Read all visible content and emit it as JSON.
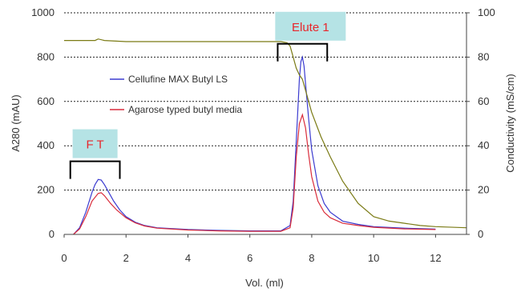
{
  "chart_data": {
    "type": "line",
    "xlabel": "Vol. (ml)",
    "ylabel": "A280 (mAU)",
    "y2label": "Conductivity (mS/cm)",
    "xlim": [
      0,
      13
    ],
    "ylim": [
      0,
      1000
    ],
    "y2lim": [
      0,
      100
    ],
    "x_ticks": [
      0,
      2,
      4,
      6,
      8,
      10,
      12
    ],
    "y_ticks": [
      0,
      200,
      400,
      600,
      800,
      1000
    ],
    "y2_ticks": [
      0,
      20,
      40,
      60,
      80,
      100
    ],
    "grid": "dashed horizontal",
    "legend_position": "upper-left inside plot",
    "series": [
      {
        "name": "Cellufine MAX Butyl LS",
        "axis": "left",
        "color": "#3b3bd0",
        "x": [
          0.3,
          0.5,
          0.7,
          0.9,
          1.0,
          1.1,
          1.2,
          1.3,
          1.4,
          1.6,
          1.8,
          2.0,
          2.3,
          2.6,
          3.0,
          4.0,
          5.0,
          6.0,
          7.0,
          7.3,
          7.4,
          7.5,
          7.6,
          7.65,
          7.7,
          7.75,
          7.8,
          7.9,
          8.0,
          8.2,
          8.4,
          8.6,
          9.0,
          9.5,
          10.0,
          11.0,
          12.0
        ],
        "y": [
          0,
          30,
          100,
          190,
          225,
          248,
          245,
          225,
          200,
          150,
          110,
          80,
          55,
          40,
          30,
          22,
          18,
          16,
          16,
          40,
          150,
          420,
          700,
          780,
          800,
          760,
          680,
          520,
          380,
          220,
          140,
          100,
          60,
          45,
          35,
          28,
          24
        ]
      },
      {
        "name": "Agarose typed butyl media",
        "axis": "left",
        "color": "#d92c3b",
        "x": [
          0.3,
          0.5,
          0.7,
          0.9,
          1.1,
          1.2,
          1.3,
          1.5,
          1.7,
          2.0,
          2.3,
          2.6,
          3.0,
          4.0,
          5.0,
          6.0,
          7.0,
          7.3,
          7.4,
          7.5,
          7.6,
          7.7,
          7.8,
          7.9,
          8.0,
          8.2,
          8.4,
          8.6,
          9.0,
          9.5,
          10.0,
          11.0,
          12.0
        ],
        "y": [
          0,
          25,
          80,
          150,
          185,
          188,
          175,
          140,
          110,
          75,
          52,
          38,
          28,
          20,
          16,
          14,
          14,
          30,
          120,
          350,
          500,
          540,
          480,
          360,
          260,
          150,
          100,
          75,
          50,
          40,
          32,
          25,
          22
        ]
      },
      {
        "name": "",
        "axis": "right",
        "color": "#7a7a14",
        "x": [
          0,
          1.0,
          1.1,
          1.3,
          2,
          4,
          6,
          7.0,
          7.2,
          7.3,
          7.4,
          7.5,
          7.6,
          7.7,
          7.8,
          8.0,
          8.3,
          8.6,
          9.0,
          9.5,
          10.0,
          10.5,
          11.0,
          11.5,
          12.0,
          13.0
        ],
        "y": [
          87.5,
          87.5,
          88.2,
          87.5,
          87,
          87,
          87,
          87,
          86.5,
          85,
          80,
          75,
          72,
          70,
          65,
          55,
          44,
          35,
          24,
          14,
          8,
          6,
          5,
          4,
          3.5,
          3
        ]
      }
    ],
    "annotations": [
      {
        "text": "F T",
        "x_range": [
          0.2,
          1.8
        ],
        "y": 330
      },
      {
        "text": "Elute 1",
        "x_range": [
          6.9,
          8.5
        ],
        "y": 860
      }
    ]
  }
}
